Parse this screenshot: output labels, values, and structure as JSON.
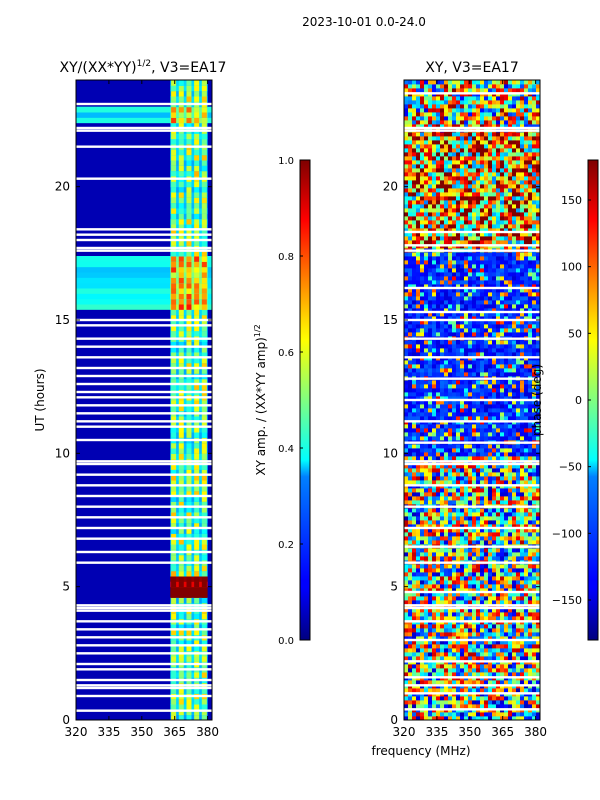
{
  "figure": {
    "suptitle": "2023-10-01 0.0-24.0",
    "xlabel": "frequency (MHz)"
  },
  "chart_data": [
    {
      "type": "heatmap",
      "title_prefix": "XY/(XX*YY)",
      "title_exp": "1/2",
      "title_suffix": ", V3=EA17",
      "ylabel": "UT (hours)",
      "xlim": [
        320,
        382
      ],
      "ylim": [
        0,
        24
      ],
      "xticks": [
        320,
        335,
        350,
        365,
        380
      ],
      "yticks": [
        0,
        5,
        10,
        15,
        20
      ],
      "colormap": "jet",
      "colorbar": {
        "label_main": "XY amp. / (XX*YY amp)",
        "label_exp": "1/2",
        "range": [
          0.0,
          1.0
        ],
        "ticks": [
          "0.0",
          "0.2",
          "0.4",
          "0.6",
          "0.8",
          "1.0"
        ]
      },
      "background_value": 0.05,
      "active_channel_band_mhz": [
        363,
        380
      ],
      "active_channels_mhz": [
        364.5,
        368,
        371.5,
        375,
        378.5
      ],
      "bright_bands": [
        {
          "ut_start": 22.3,
          "ut_end": 23.0,
          "value": 0.35
        },
        {
          "ut_start": 15.3,
          "ut_end": 17.5,
          "value": 0.4
        },
        {
          "ut_start": 4.5,
          "ut_end": 5.5,
          "value": 0.85
        }
      ],
      "flagged_ut": [
        0.35,
        0.9,
        1.2,
        1.3,
        1.5,
        1.9,
        2.1,
        2.5,
        2.8,
        3.1,
        3.4,
        3.7,
        4.1,
        4.2,
        4.3,
        5.9,
        6.3,
        6.8,
        7.2,
        7.6,
        8.0,
        8.4,
        8.8,
        9.2,
        9.6,
        9.7,
        10.5,
        11.0,
        11.2,
        11.5,
        11.8,
        12.1,
        12.3,
        12.6,
        12.9,
        13.2,
        13.6,
        14.0,
        14.3,
        14.8,
        15.0,
        17.6,
        17.7,
        18.0,
        18.2,
        18.4,
        20.3,
        21.5,
        22.1,
        22.2,
        23.1
      ]
    },
    {
      "type": "heatmap",
      "title": "XY, V3=EA17",
      "xlim": [
        320,
        382
      ],
      "ylim": [
        0,
        24
      ],
      "xticks": [
        320,
        335,
        350,
        365,
        380
      ],
      "yticks": [
        0,
        5,
        10,
        15,
        20
      ],
      "colormap": "jet",
      "colorbar": {
        "label": "phase (deg)",
        "range": [
          -180,
          180
        ],
        "ticks": [
          "150",
          "100",
          "50",
          "0",
          "−50",
          "−100",
          "−150"
        ]
      },
      "flagged_ut": [
        0.4,
        1.0,
        1.3,
        1.6,
        2.2,
        3.0,
        3.7,
        4.2,
        4.3,
        4.8,
        5.9,
        6.5,
        7.2,
        8.0,
        8.8,
        9.6,
        9.7,
        10.4,
        11.2,
        12.0,
        12.8,
        13.6,
        14.3,
        15.0,
        15.3,
        16.2,
        17.6,
        17.8,
        18.3,
        22.1,
        22.2,
        23.5
      ]
    }
  ]
}
